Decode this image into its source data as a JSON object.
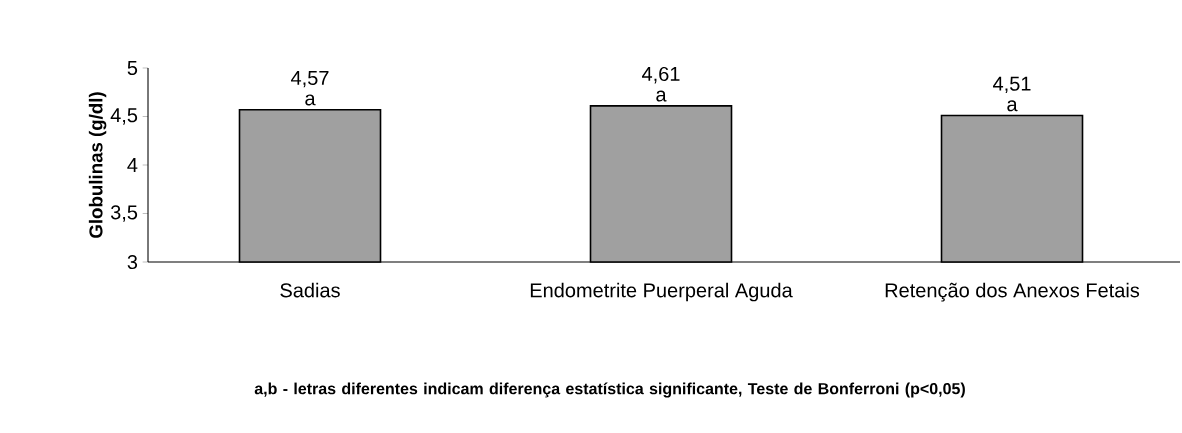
{
  "chart_data": {
    "type": "bar",
    "ylabel": "Globulinas (g/dl)",
    "categories": [
      "Sadias",
      "Endometrite Puerperal Aguda",
      "Retenção dos Anexos Fetais"
    ],
    "values": [
      4.57,
      4.61,
      4.51
    ],
    "value_labels": [
      "4,57",
      "4,61",
      "4,51"
    ],
    "color": "#a0a0a0",
    "ylim": [
      3,
      5
    ],
    "yticks": [
      3,
      {
        "value": 3.5,
        "label": "3,5"
      },
      4,
      {
        "value": 4.5,
        "label": "4,5"
      },
      5
    ],
    "grid": false,
    "annotations": [
      {
        "text": "a",
        "x": "Sadias",
        "y": 4.57
      },
      {
        "text": "a",
        "x": "Endometrite Puerperal Aguda",
        "y": 4.61
      },
      {
        "text": "a",
        "x": "Retenção dos Anexos Fetais",
        "y": 4.51
      },
      "a,b - letras diferentes indicam diferença estatística significante, Teste de Bonferroni (p<0,05)"
    ]
  }
}
